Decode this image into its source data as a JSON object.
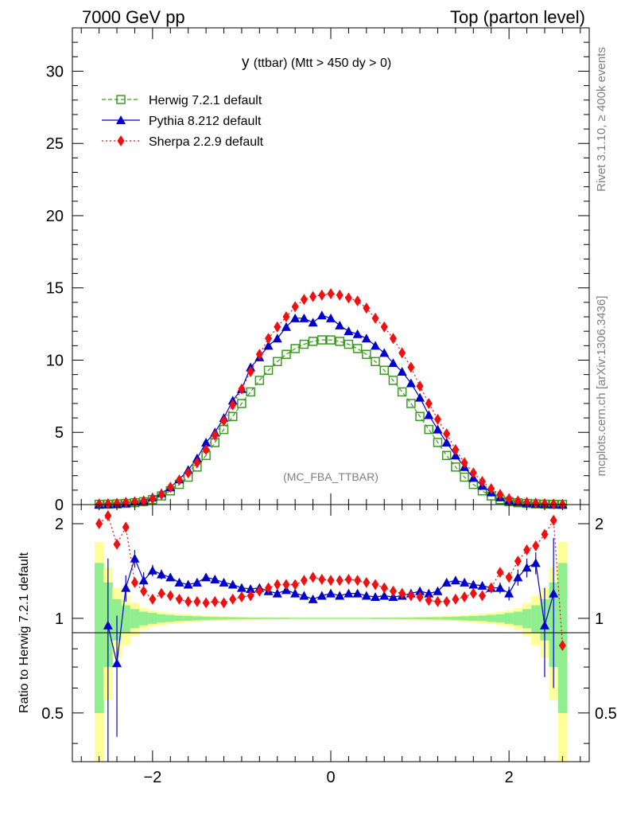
{
  "header": {
    "left": "7000 GeV pp",
    "right": "Top (parton level)"
  },
  "side": {
    "rivet": "Rivet 3.1.10, ≥ 400k events",
    "site": "mcplots.cern.ch [arXiv:1306.3436]"
  },
  "plot_title": {
    "main": "y",
    "rest": "(ttbar) (Mtt > 450 dy > 0)"
  },
  "analysis_tag": "(MC_FBA_TTBAR)",
  "ratio_ylabel": "Ratio to Herwig 7.2.1 default",
  "colors": {
    "herwig": "#3a9a1e",
    "pythia": "#0000cc",
    "sherpa": "#ee1111",
    "band_yellow": "#ffff99",
    "band_green": "#90ee90"
  },
  "chart_data": [
    {
      "type": "line",
      "panel": "main",
      "xlim": [
        -2.9,
        2.9
      ],
      "ylim": [
        0,
        33
      ],
      "yticks": [
        0,
        5,
        10,
        15,
        20,
        25,
        30
      ],
      "legend_position": "top-left",
      "x": [
        -2.6,
        -2.5,
        -2.4,
        -2.3,
        -2.2,
        -2.1,
        -2.0,
        -1.9,
        -1.8,
        -1.7,
        -1.6,
        -1.5,
        -1.4,
        -1.3,
        -1.2,
        -1.1,
        -1.0,
        -0.9,
        -0.8,
        -0.7,
        -0.6,
        -0.5,
        -0.4,
        -0.3,
        -0.2,
        -0.1,
        0.0,
        0.1,
        0.2,
        0.3,
        0.4,
        0.5,
        0.6,
        0.7,
        0.8,
        0.9,
        1.0,
        1.1,
        1.2,
        1.3,
        1.4,
        1.5,
        1.6,
        1.7,
        1.8,
        1.9,
        2.0,
        2.1,
        2.2,
        2.3,
        2.4,
        2.5,
        2.6
      ],
      "series": [
        {
          "name": "Herwig 7.2.1 default",
          "marker": "open-square",
          "line": "dashed",
          "values": [
            0.02,
            0.03,
            0.05,
            0.08,
            0.13,
            0.2,
            0.35,
            0.6,
            0.95,
            1.4,
            1.9,
            2.6,
            3.4,
            4.3,
            5.2,
            6.1,
            7.0,
            7.8,
            8.6,
            9.3,
            9.9,
            10.4,
            10.8,
            11.1,
            11.3,
            11.4,
            11.4,
            11.3,
            11.1,
            10.8,
            10.4,
            9.9,
            9.3,
            8.6,
            7.8,
            7.0,
            6.1,
            5.2,
            4.3,
            3.4,
            2.6,
            1.9,
            1.4,
            0.95,
            0.6,
            0.35,
            0.2,
            0.13,
            0.08,
            0.05,
            0.03,
            0.02,
            0.01
          ]
        },
        {
          "name": "Pythia 8.212 default",
          "marker": "filled-triangle",
          "line": "solid",
          "values": [
            0.01,
            0.03,
            0.04,
            0.1,
            0.2,
            0.3,
            0.5,
            0.8,
            1.2,
            1.75,
            2.4,
            3.2,
            4.3,
            5.0,
            6.0,
            7.2,
            8.0,
            9.5,
            10.2,
            11.0,
            11.5,
            12.3,
            12.9,
            12.9,
            12.6,
            13.1,
            12.9,
            12.4,
            12.0,
            11.8,
            11.5,
            11.0,
            10.5,
            9.8,
            9.2,
            8.4,
            7.4,
            6.2,
            5.2,
            4.3,
            3.4,
            2.6,
            1.85,
            1.3,
            0.85,
            0.5,
            0.3,
            0.18,
            0.12,
            0.07,
            0.04,
            0.02,
            0.01
          ]
        },
        {
          "name": "Sherpa 2.2.9 default",
          "marker": "filled-diamond",
          "line": "dotted",
          "values": [
            0.04,
            0.06,
            0.09,
            0.15,
            0.2,
            0.25,
            0.4,
            0.7,
            1.2,
            1.7,
            2.2,
            2.9,
            3.8,
            4.8,
            5.8,
            6.9,
            8.0,
            9.2,
            10.4,
            11.5,
            12.3,
            13.0,
            13.7,
            14.2,
            14.4,
            14.5,
            14.6,
            14.5,
            14.3,
            14.1,
            13.6,
            12.9,
            12.3,
            11.5,
            10.5,
            9.5,
            8.2,
            7.0,
            5.9,
            4.9,
            3.8,
            2.9,
            2.2,
            1.6,
            1.1,
            0.7,
            0.4,
            0.25,
            0.15,
            0.1,
            0.06,
            0.04,
            0.01
          ]
        }
      ]
    },
    {
      "type": "line",
      "panel": "ratio",
      "ylabel": "Ratio to Herwig 7.2.1 default",
      "xlim": [
        -2.9,
        2.9
      ],
      "ylim": [
        0.35,
        2.3
      ],
      "yticks": [
        0.5,
        1,
        2
      ],
      "xticks": [
        -2,
        0,
        2
      ],
      "x": [
        -2.6,
        -2.5,
        -2.4,
        -2.3,
        -2.2,
        -2.1,
        -2.0,
        -1.9,
        -1.8,
        -1.7,
        -1.6,
        -1.5,
        -1.4,
        -1.3,
        -1.2,
        -1.1,
        -1.0,
        -0.9,
        -0.8,
        -0.7,
        -0.6,
        -0.5,
        -0.4,
        -0.3,
        -0.2,
        -0.1,
        0.0,
        0.1,
        0.2,
        0.3,
        0.4,
        0.5,
        0.6,
        0.7,
        0.8,
        0.9,
        1.0,
        1.1,
        1.2,
        1.3,
        1.4,
        1.5,
        1.6,
        1.7,
        1.8,
        1.9,
        2.0,
        2.1,
        2.2,
        2.3,
        2.4,
        2.5,
        2.6
      ],
      "band_yellow_half": [
        0.75,
        0.45,
        0.25,
        0.18,
        0.12,
        0.08,
        0.06,
        0.05,
        0.04,
        0.035,
        0.03,
        0.025,
        0.02,
        0.018,
        0.015,
        0.013,
        0.012,
        0.011,
        0.01,
        0.01,
        0.009,
        0.009,
        0.008,
        0.008,
        0.008,
        0.008,
        0.008,
        0.008,
        0.008,
        0.008,
        0.008,
        0.009,
        0.009,
        0.01,
        0.01,
        0.011,
        0.012,
        0.013,
        0.015,
        0.018,
        0.02,
        0.025,
        0.03,
        0.035,
        0.04,
        0.05,
        0.06,
        0.08,
        0.12,
        0.18,
        0.25,
        0.45,
        0.75
      ],
      "band_green_half": [
        0.5,
        0.3,
        0.15,
        0.1,
        0.07,
        0.05,
        0.04,
        0.03,
        0.025,
        0.02,
        0.018,
        0.015,
        0.012,
        0.01,
        0.009,
        0.008,
        0.007,
        0.006,
        0.006,
        0.005,
        0.005,
        0.005,
        0.004,
        0.004,
        0.004,
        0.004,
        0.004,
        0.004,
        0.004,
        0.004,
        0.004,
        0.005,
        0.005,
        0.005,
        0.006,
        0.006,
        0.007,
        0.008,
        0.009,
        0.01,
        0.012,
        0.015,
        0.018,
        0.02,
        0.025,
        0.03,
        0.04,
        0.05,
        0.07,
        0.1,
        0.15,
        0.3,
        0.5
      ],
      "series": [
        {
          "name": "Pythia 8.212 default",
          "values": [
            null,
            0.95,
            0.72,
            1.25,
            1.55,
            1.32,
            1.42,
            1.38,
            1.35,
            1.3,
            1.28,
            1.3,
            1.35,
            1.33,
            1.3,
            1.28,
            1.25,
            1.24,
            1.25,
            1.22,
            1.2,
            1.23,
            1.2,
            1.18,
            1.15,
            1.18,
            1.2,
            1.18,
            1.2,
            1.2,
            1.18,
            1.17,
            1.18,
            1.17,
            1.18,
            1.2,
            1.22,
            1.2,
            1.22,
            1.3,
            1.32,
            1.3,
            1.28,
            1.27,
            1.25,
            1.25,
            1.2,
            1.35,
            1.45,
            1.5,
            0.95,
            1.2,
            null
          ],
          "errors": [
            0,
            0.6,
            0.3,
            0.12,
            0.1,
            0.08,
            0.06,
            0.05,
            0.04,
            0.03,
            0.03,
            0.025,
            0.02,
            0.02,
            0.02,
            0.015,
            0.015,
            0.015,
            0.015,
            0.012,
            0.012,
            0.012,
            0.012,
            0.012,
            0.012,
            0.012,
            0.012,
            0.012,
            0.012,
            0.012,
            0.012,
            0.012,
            0.012,
            0.012,
            0.015,
            0.015,
            0.015,
            0.015,
            0.02,
            0.02,
            0.02,
            0.025,
            0.03,
            0.03,
            0.04,
            0.05,
            0.06,
            0.08,
            0.1,
            0.12,
            0.3,
            0.6,
            0
          ]
        },
        {
          "name": "Sherpa 2.2.9 default",
          "values": [
            2.0,
            2.12,
            1.72,
            1.95,
            1.3,
            1.22,
            1.15,
            1.2,
            1.18,
            1.15,
            1.13,
            1.13,
            1.12,
            1.13,
            1.12,
            1.15,
            1.17,
            1.18,
            1.22,
            1.25,
            1.28,
            1.28,
            1.28,
            1.32,
            1.35,
            1.33,
            1.32,
            1.32,
            1.33,
            1.32,
            1.3,
            1.28,
            1.25,
            1.22,
            1.2,
            1.18,
            1.17,
            1.14,
            1.13,
            1.13,
            1.15,
            1.17,
            1.2,
            1.18,
            1.25,
            1.4,
            1.35,
            1.52,
            1.65,
            1.7,
            1.85,
            2.05,
            0.82
          ]
        }
      ]
    }
  ]
}
